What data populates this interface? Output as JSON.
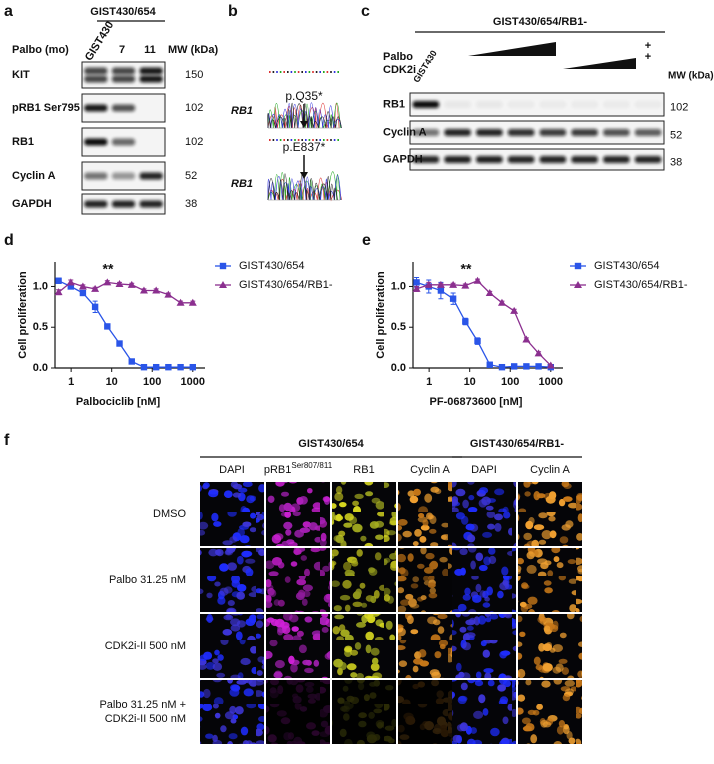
{
  "panel_a": {
    "label": "a",
    "group": "GIST430/654",
    "treatment_label": "Palbo (mo)",
    "lanes": [
      "GIST430",
      "7",
      "11"
    ],
    "mw_header": "MW (kDa)",
    "rows": [
      {
        "name": "KIT",
        "mw": 150
      },
      {
        "name": "pRB1 Ser795",
        "mw": 102
      },
      {
        "name": "RB1",
        "mw": 102
      },
      {
        "name": "Cyclin A",
        "mw": 52
      },
      {
        "name": "GAPDH",
        "mw": 38
      }
    ]
  },
  "panel_b": {
    "label": "b",
    "traces": [
      {
        "mutation": "p.Q35*",
        "gene": "RB1"
      },
      {
        "mutation": "p.E837*",
        "gene": "RB1"
      }
    ]
  },
  "panel_c": {
    "label": "c",
    "group": "GIST430/654/RB1-",
    "treatments": [
      "Palbo",
      "CDK2i"
    ],
    "control_lane": "GIST430",
    "combo_marks": [
      "+",
      "+"
    ],
    "mw_header": "MW (kDa)",
    "rows": [
      {
        "name": "RB1",
        "mw": 102
      },
      {
        "name": "Cyclin A",
        "mw": 52
      },
      {
        "name": "GAPDH",
        "mw": 38
      }
    ]
  },
  "chart_data": [
    {
      "type": "line",
      "panel_label": "d",
      "x_label": "Palbociclib [nM]",
      "y_label": "Cell proliferation",
      "annotation": "**",
      "xscale": "log",
      "xlim": [
        0.4,
        2000
      ],
      "xticks": [
        1,
        10,
        100,
        1000
      ],
      "ylim": [
        0,
        1.3
      ],
      "yticks": [
        {
          "value": 0,
          "label": "0.0"
        },
        0.5,
        {
          "value": 1,
          "label": "1.0"
        }
      ],
      "x": [
        0.49,
        0.98,
        1.95,
        3.9,
        7.8,
        15.6,
        31.25,
        62.5,
        125,
        250,
        500,
        1000
      ],
      "series": [
        {
          "name": "GIST430/654",
          "color": "#2a55e8",
          "marker": "square",
          "values": [
            1.07,
            1.0,
            0.92,
            0.75,
            0.51,
            0.3,
            0.08,
            0.01,
            0.01,
            0.01,
            0.01,
            0.01
          ],
          "errors": [
            0.03,
            0.02,
            0.03,
            0.07,
            0.02,
            0.02,
            0.01,
            0.01,
            0.01,
            0.01,
            0.01,
            0.01
          ]
        },
        {
          "name": "GIST430/654/RB1-",
          "color": "#8b2f8f",
          "marker": "triangle",
          "values": [
            0.93,
            1.05,
            1.0,
            0.97,
            1.05,
            1.03,
            1.02,
            0.95,
            0.95,
            0.9,
            0.8,
            0.8
          ],
          "errors": [
            0.03,
            0.03,
            0.02,
            0.02,
            0.02,
            0.02,
            0.02,
            0.02,
            0.02,
            0.02,
            0.02,
            0.02
          ]
        }
      ]
    },
    {
      "type": "line",
      "panel_label": "e",
      "x_label": "PF-06873600 [nM]",
      "y_label": "Cell proliferation",
      "annotation": "**",
      "xscale": "log",
      "xlim": [
        0.4,
        2000
      ],
      "xticks": [
        1,
        10,
        100,
        1000
      ],
      "ylim": [
        0,
        1.3
      ],
      "yticks": [
        {
          "value": 0,
          "label": "0.0"
        },
        0.5,
        {
          "value": 1,
          "label": "1.0"
        }
      ],
      "x": [
        0.49,
        0.98,
        1.95,
        3.9,
        7.8,
        15.6,
        31.25,
        62.5,
        125,
        250,
        500,
        1000
      ],
      "series": [
        {
          "name": "GIST430/654",
          "color": "#2a55e8",
          "marker": "square",
          "values": [
            1.05,
            1.0,
            0.95,
            0.85,
            0.57,
            0.33,
            0.04,
            0.01,
            0.02,
            0.02,
            0.02,
            0.01
          ],
          "errors": [
            0.06,
            0.08,
            0.1,
            0.07,
            0.04,
            0.04,
            0.01,
            0.01,
            0.01,
            0.01,
            0.01,
            0.01
          ]
        },
        {
          "name": "GIST430/654/RB1-",
          "color": "#8b2f8f",
          "marker": "triangle",
          "values": [
            0.97,
            1.02,
            1.02,
            1.02,
            1.01,
            1.07,
            0.92,
            0.8,
            0.7,
            0.35,
            0.18,
            0.03
          ],
          "errors": [
            0.03,
            0.03,
            0.02,
            0.02,
            0.02,
            0.02,
            0.02,
            0.02,
            0.02,
            0.02,
            0.02,
            0.01
          ]
        }
      ]
    }
  ],
  "panel_f": {
    "label": "f",
    "groups": [
      {
        "name": "GIST430/654",
        "columns": [
          {
            "text": "DAPI"
          },
          {
            "text": "pRB1",
            "sup": "Ser807/811"
          },
          {
            "text": "RB1"
          },
          {
            "text": "Cyclin A"
          }
        ]
      },
      {
        "name": "GIST430/654/RB1-",
        "columns": [
          {
            "text": "DAPI"
          },
          {
            "text": "Cyclin A"
          }
        ]
      }
    ],
    "rows": [
      [
        "DMSO"
      ],
      [
        "Palbo 31.25 nM"
      ],
      [
        "CDK2i-II 500 nM"
      ],
      [
        "Palbo 31.25 nM +",
        "CDK2i-II 500 nM"
      ]
    ]
  }
}
